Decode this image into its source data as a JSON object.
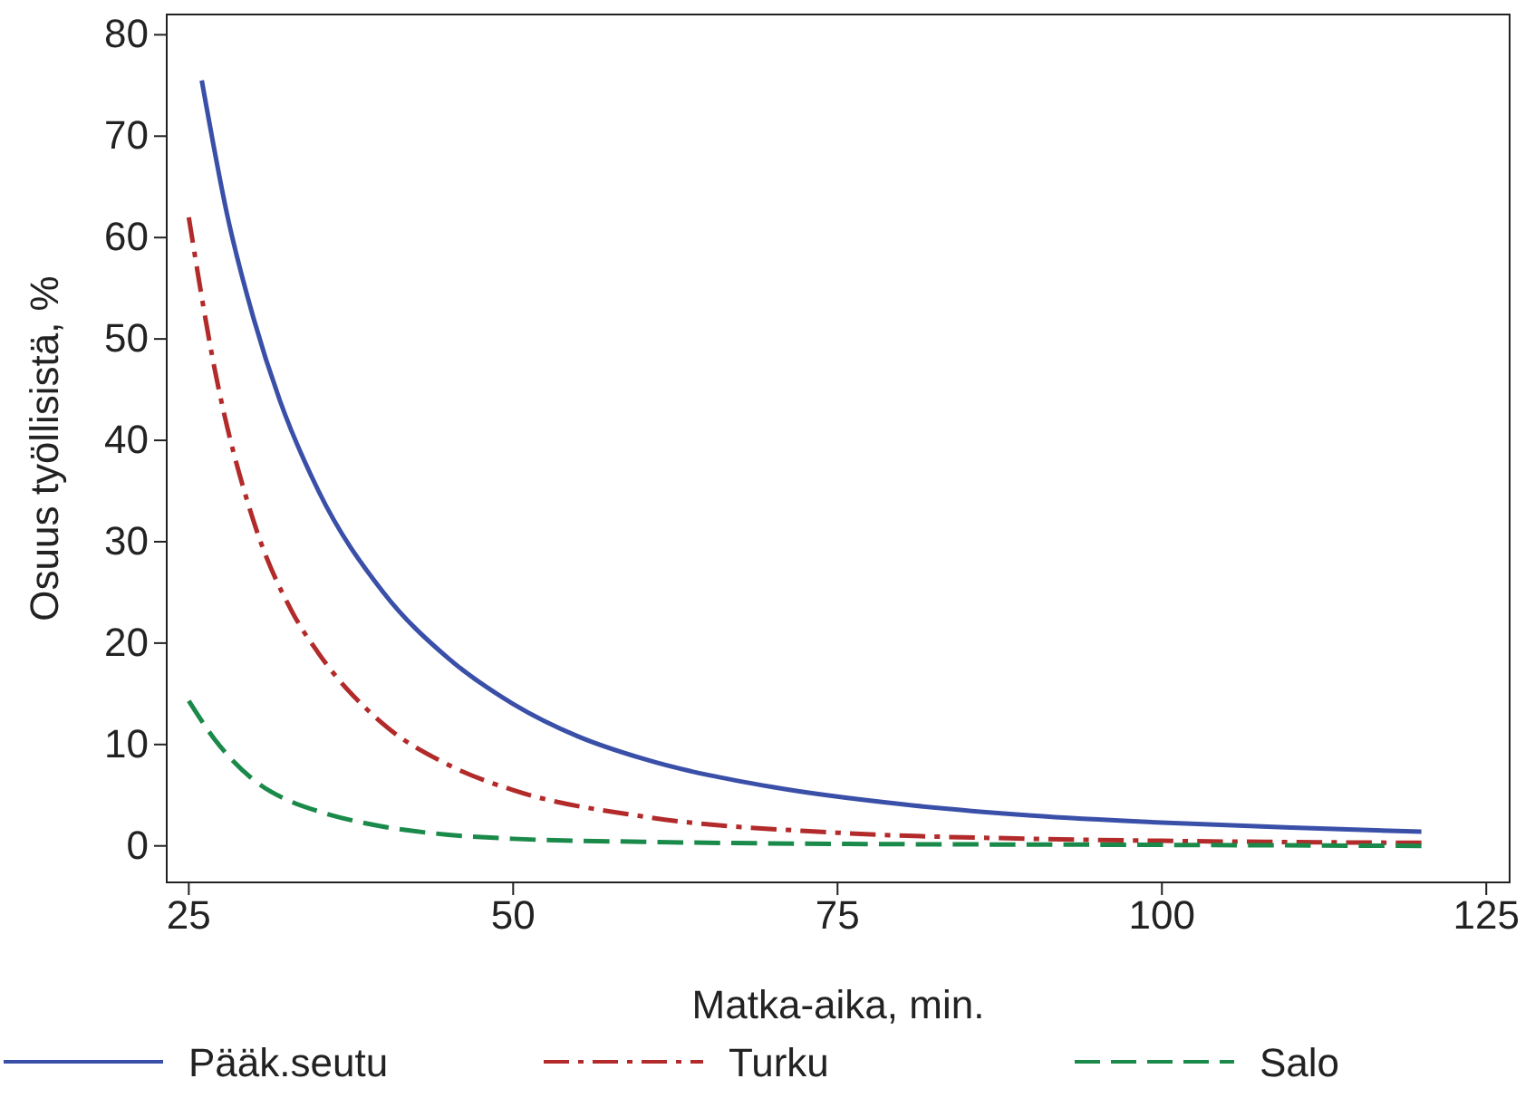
{
  "chart_data": {
    "type": "line",
    "xlabel": "Matka-aika, min.",
    "ylabel": "Osuus työllisistä, %",
    "xlim": [
      23.3,
      126.8
    ],
    "ylim": [
      -3.6,
      82
    ],
    "xticks": [
      25,
      50,
      75,
      100,
      125
    ],
    "yticks": [
      0,
      10,
      20,
      30,
      40,
      50,
      60,
      70,
      80
    ],
    "grid": false,
    "legend": "bottom",
    "marker": "none",
    "series": [
      {
        "name": "Pääk.seutu",
        "color": "#3a4fa8",
        "line_style": "solid",
        "x": [
          26,
          28,
          30,
          32,
          35,
          40,
          45,
          50,
          55,
          60,
          70,
          80,
          90,
          100,
          110,
          120
        ],
        "values": [
          75.5,
          62,
          52,
          44,
          35,
          25,
          18.5,
          14,
          10.8,
          8.6,
          5.8,
          4.1,
          3.0,
          2.3,
          1.8,
          1.4
        ]
      },
      {
        "name": "Turku",
        "color": "#b22a2a",
        "line_style": "dashdot",
        "x": [
          25,
          27,
          30,
          33,
          35,
          40,
          45,
          50,
          60,
          75,
          90,
          100,
          120
        ],
        "values": [
          62,
          47,
          32,
          23,
          19,
          12,
          8,
          5.5,
          2.9,
          1.3,
          0.7,
          0.5,
          0.3
        ]
      },
      {
        "name": "Salo",
        "color": "#1a8a4a",
        "line_style": "dashed",
        "x": [
          25,
          27,
          30,
          33,
          35,
          40,
          45,
          50,
          60,
          75,
          100,
          120
        ],
        "values": [
          14.3,
          10.5,
          6.5,
          4.3,
          3.4,
          1.9,
          1.1,
          0.7,
          0.4,
          0.2,
          0.1,
          0
        ]
      }
    ]
  }
}
